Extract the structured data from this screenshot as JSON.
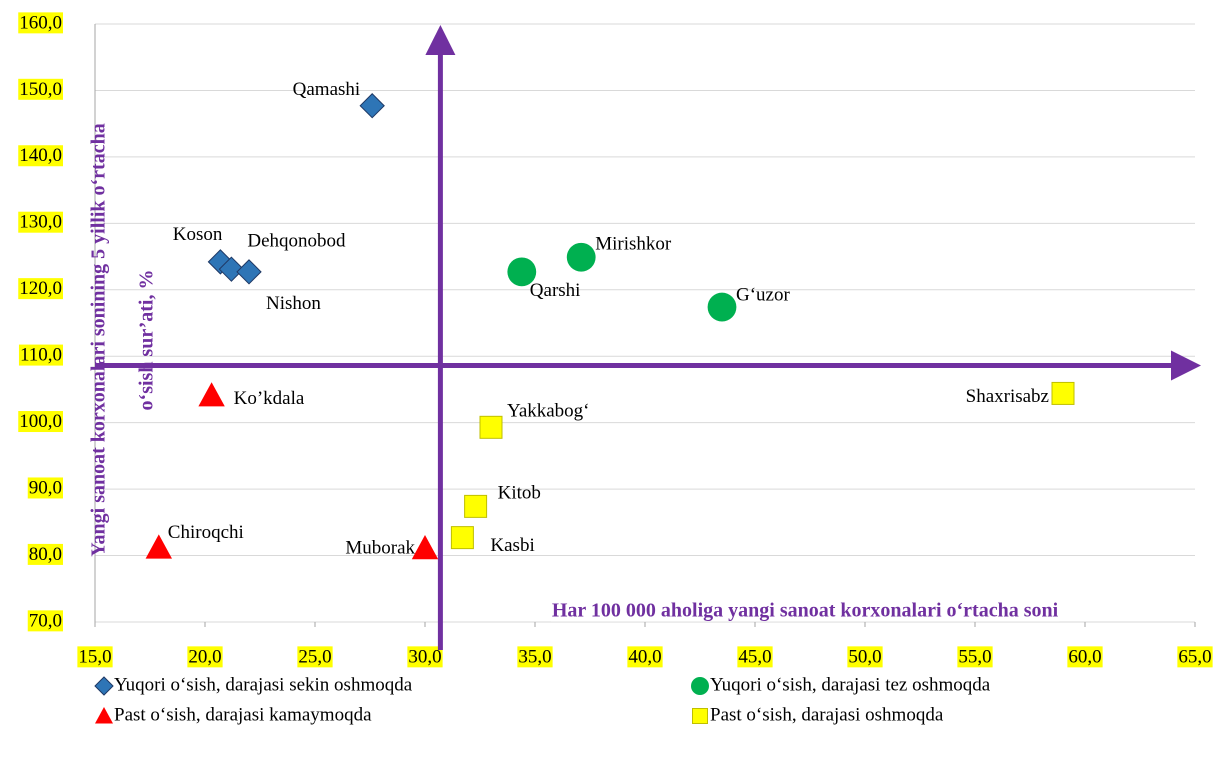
{
  "chart_data": {
    "type": "scatter",
    "xlabel": "Har 100 000 aholiga yangi sanoat korxonalari o‘rtacha soni",
    "ylabel": [
      "Yangi sanoat korxonalari sonining 5 yillik o‘rtacha",
      "o‘sish sur’ati, %"
    ],
    "xlim": [
      15,
      65
    ],
    "ylim": [
      70,
      160
    ],
    "xticks": [
      {
        "value": 15,
        "label": "15,0"
      },
      {
        "value": 20,
        "label": "20,0"
      },
      {
        "value": 25,
        "label": "25,0"
      },
      {
        "value": 30,
        "label": "30,0"
      },
      {
        "value": 35,
        "label": "35,0"
      },
      {
        "value": 40,
        "label": "40,0"
      },
      {
        "value": 45,
        "label": "45,0"
      },
      {
        "value": 50,
        "label": "50,0"
      },
      {
        "value": 55,
        "label": "55,0"
      },
      {
        "value": 60,
        "label": "60,0"
      },
      {
        "value": 65,
        "label": "65,0"
      }
    ],
    "yticks": [
      {
        "value": 70,
        "label": "70,0"
      },
      {
        "value": 80,
        "label": "80,0"
      },
      {
        "value": 90,
        "label": "90,0"
      },
      {
        "value": 100,
        "label": "100,0"
      },
      {
        "value": 110,
        "label": "110,0"
      },
      {
        "value": 120,
        "label": "120,0"
      },
      {
        "value": 130,
        "label": "130,0"
      },
      {
        "value": 140,
        "label": "140,0"
      },
      {
        "value": 150,
        "label": "150,0"
      },
      {
        "value": 160,
        "label": "160,0"
      }
    ],
    "grid": true,
    "divider_x": 30.7,
    "divider_y": 108.6,
    "divider_color": "#7030a0",
    "series": [
      {
        "name": "Yuqori o‘sish, darajasi sekin oshmoqda",
        "color": "#2e75b6",
        "marker": "diamond",
        "labels": [
          "Qamashi",
          "Koson",
          "Dehqonobod",
          "Nishon"
        ],
        "x": [
          27.6,
          20.7,
          21.2,
          22.0
        ],
        "values": [
          147.7,
          124.2,
          123.1,
          122.7
        ]
      },
      {
        "name": "Yuqori o‘sish, darajasi tez oshmoqda",
        "color": "#00b050",
        "marker": "circle",
        "labels": [
          "Qarshi",
          "Mirishkor",
          "G‘uzor"
        ],
        "x": [
          34.4,
          37.1,
          43.5
        ],
        "values": [
          122.7,
          124.9,
          117.4
        ]
      },
      {
        "name": "Past o‘sish, darajasi kamaymoqda",
        "color": "#ff0000",
        "marker": "triangle",
        "labels": [
          "Ko’kdala",
          "Chiroqchi",
          "Muborak"
        ],
        "x": [
          20.3,
          17.9,
          30.0
        ],
        "values": [
          104.1,
          81.2,
          81.1
        ]
      },
      {
        "name": "Past o‘sish, darajasi oshmoqda",
        "color": "#ffff00",
        "marker": "square",
        "labels": [
          "Shaxrisabz",
          "Yakkabog‘",
          "Kitob",
          "Kasbi"
        ],
        "x": [
          59.0,
          33.0,
          32.3,
          31.7
        ],
        "values": [
          104.4,
          99.3,
          87.4,
          82.7
        ]
      }
    ]
  }
}
